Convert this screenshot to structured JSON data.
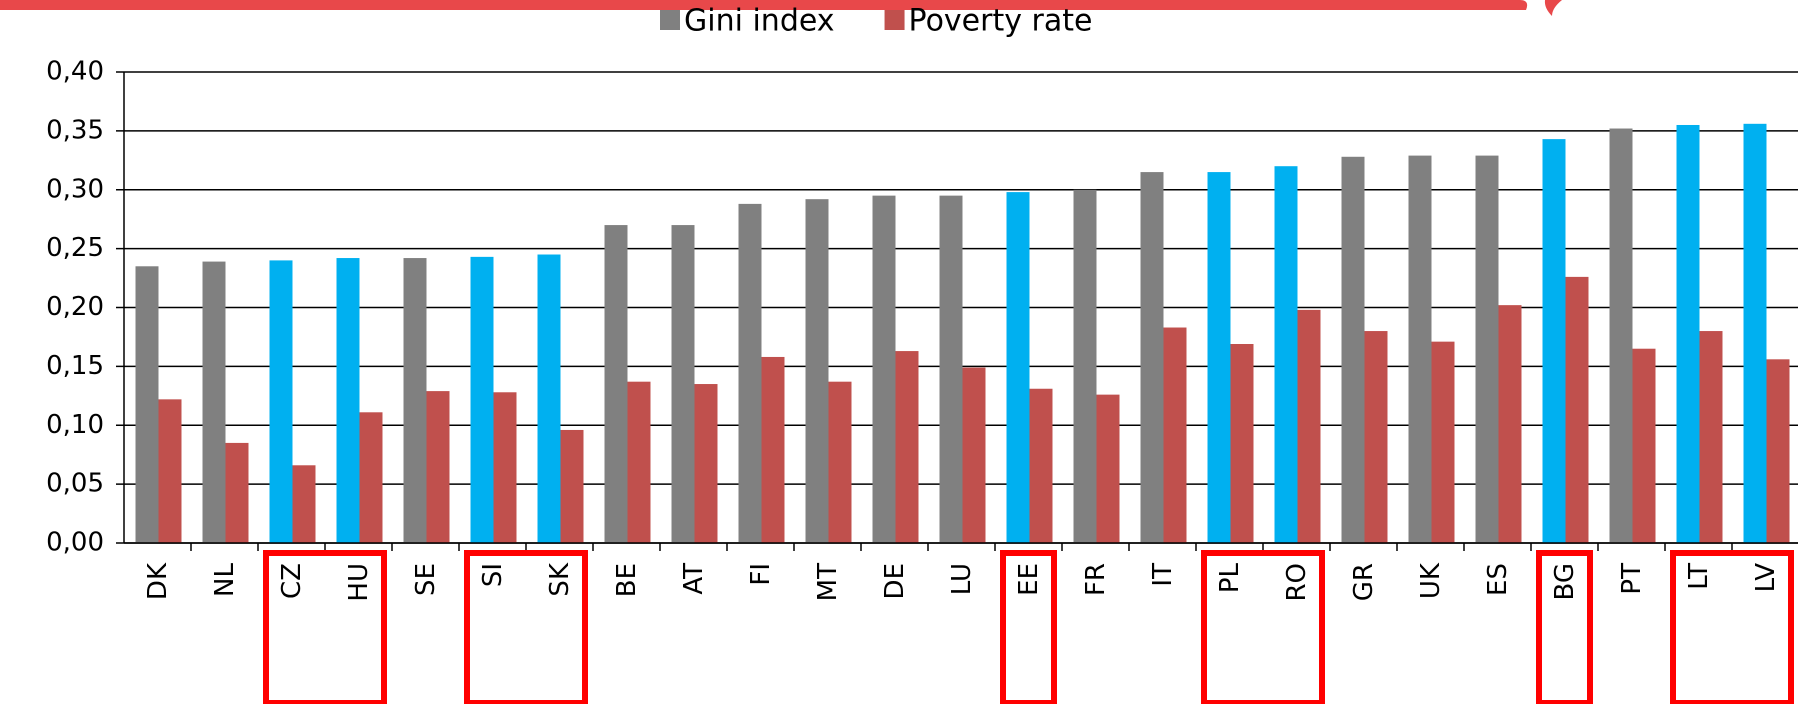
{
  "chart_data": {
    "type": "bar",
    "categories": [
      "DK",
      "NL",
      "CZ",
      "HU",
      "SE",
      "SI",
      "SK",
      "BE",
      "AT",
      "FI",
      "MT",
      "DE",
      "LU",
      "EE",
      "FR",
      "IT",
      "PL",
      "RO",
      "GR",
      "UK",
      "ES",
      "BG",
      "PT",
      "LT",
      "LV"
    ],
    "series": [
      {
        "name": "Gini index",
        "color": "#808080",
        "point_colors": [
          "#808080",
          "#808080",
          "#00b0f0",
          "#00b0f0",
          "#808080",
          "#00b0f0",
          "#00b0f0",
          "#808080",
          "#808080",
          "#808080",
          "#808080",
          "#808080",
          "#808080",
          "#00b0f0",
          "#808080",
          "#808080",
          "#00b0f0",
          "#00b0f0",
          "#808080",
          "#808080",
          "#808080",
          "#00b0f0",
          "#808080",
          "#00b0f0",
          "#00b0f0"
        ],
        "values": [
          0.235,
          0.239,
          0.24,
          0.242,
          0.242,
          0.243,
          0.245,
          0.27,
          0.27,
          0.288,
          0.292,
          0.295,
          0.295,
          0.298,
          0.3,
          0.315,
          0.315,
          0.32,
          0.328,
          0.329,
          0.329,
          0.343,
          0.352,
          0.355,
          0.356
        ]
      },
      {
        "name": "Poverty rate",
        "color": "#c0504d",
        "values": [
          0.122,
          0.085,
          0.066,
          0.111,
          0.129,
          0.128,
          0.096,
          0.137,
          0.135,
          0.158,
          0.137,
          0.163,
          0.149,
          0.131,
          0.126,
          0.183,
          0.169,
          0.198,
          0.18,
          0.171,
          0.202,
          0.226,
          0.165,
          0.18,
          0.156
        ]
      }
    ],
    "ylim": [
      0,
      0.4
    ],
    "yticks": [
      {
        "value": 0,
        "label": "0,00"
      },
      {
        "value": 0.05,
        "label": "0,05"
      },
      {
        "value": 0.1,
        "label": "0,10"
      },
      {
        "value": 0.15,
        "label": "0,15"
      },
      {
        "value": 0.2,
        "label": "0,20"
      },
      {
        "value": 0.25,
        "label": "0,25"
      },
      {
        "value": 0.3,
        "label": "0,30"
      },
      {
        "value": 0.35,
        "label": "0,35"
      },
      {
        "value": 0.4,
        "label": "0,40"
      }
    ],
    "grid": true
  }
}
